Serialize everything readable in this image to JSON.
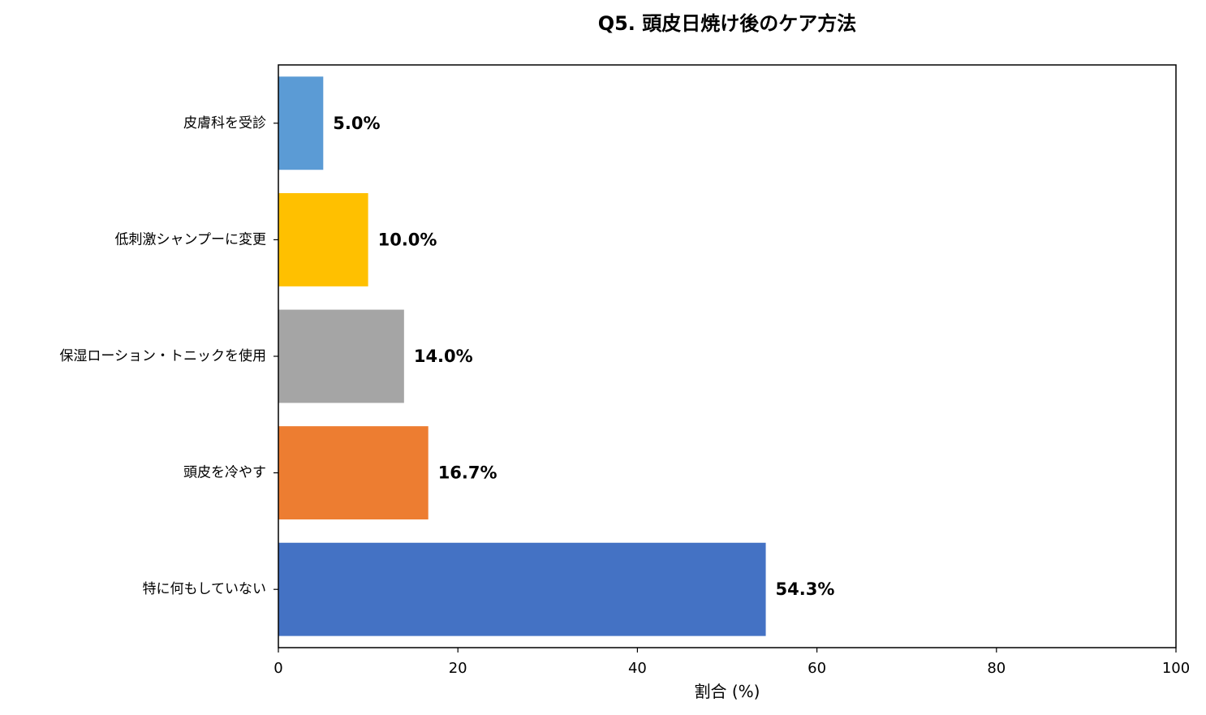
{
  "chart_data": {
    "type": "bar",
    "orientation": "horizontal",
    "title": "Q5. 頭皮日焼け後のケア方法",
    "xlabel": "割合 (%)",
    "ylabel": "",
    "xlim": [
      0,
      100
    ],
    "xticks": [
      "0",
      "20",
      "40",
      "60",
      "80",
      "100"
    ],
    "grid": false,
    "categories": [
      "皮膚科を受診",
      "低刺激シャンプーに変更",
      "保湿ローション・トニックを使用",
      "頭皮を冷やす",
      "特に何もしていない"
    ],
    "values": [
      5.0,
      10.0,
      14.0,
      16.7,
      54.3
    ],
    "value_labels": [
      "5.0%",
      "10.0%",
      "14.0%",
      "16.7%",
      "54.3%"
    ],
    "colors": [
      "#5b9bd5",
      "#ffc000",
      "#a5a5a5",
      "#ed7d31",
      "#4472c4"
    ]
  }
}
